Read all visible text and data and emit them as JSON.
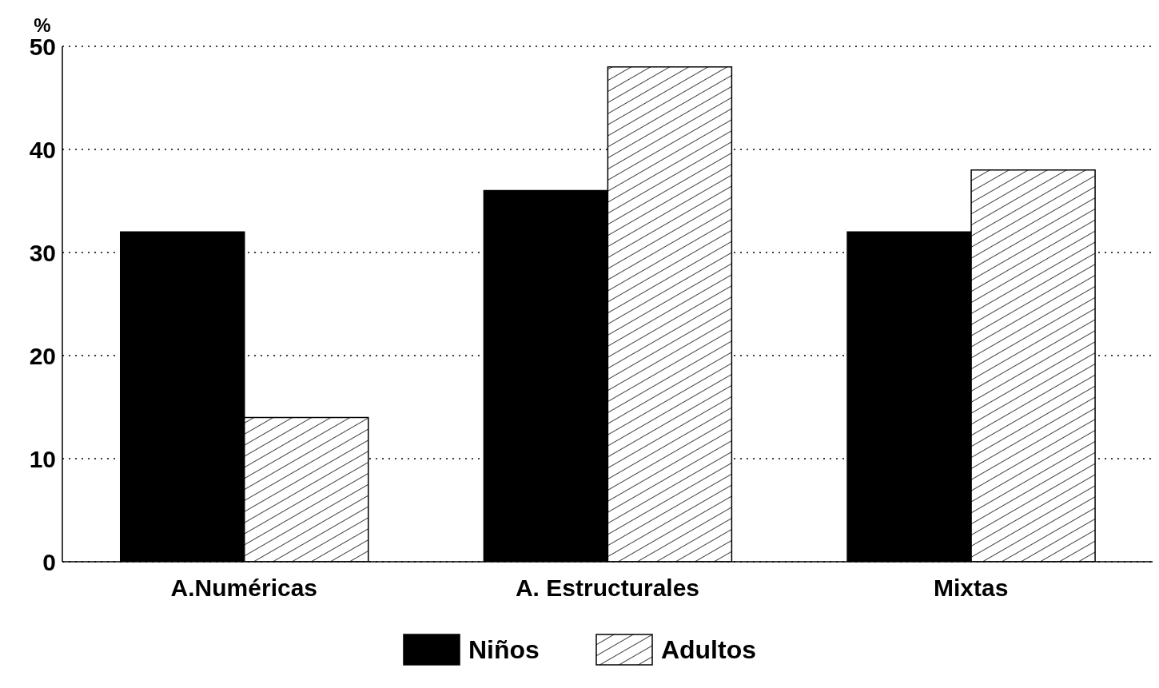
{
  "chart_data": {
    "type": "bar",
    "ylabel": "%",
    "categories": [
      "A.Numéricas",
      "A. Estructurales",
      "Mixtas"
    ],
    "series": [
      {
        "name": "Niños",
        "color": "#000000",
        "values": [
          32,
          36,
          32
        ]
      },
      {
        "name": "Adultos",
        "color": "#000000",
        "values": [
          14,
          48,
          38
        ]
      }
    ],
    "ylim": [
      0,
      50
    ],
    "yticks": [
      0,
      10,
      20,
      30,
      40,
      50
    ],
    "grid": "y",
    "legend": "bottom"
  }
}
